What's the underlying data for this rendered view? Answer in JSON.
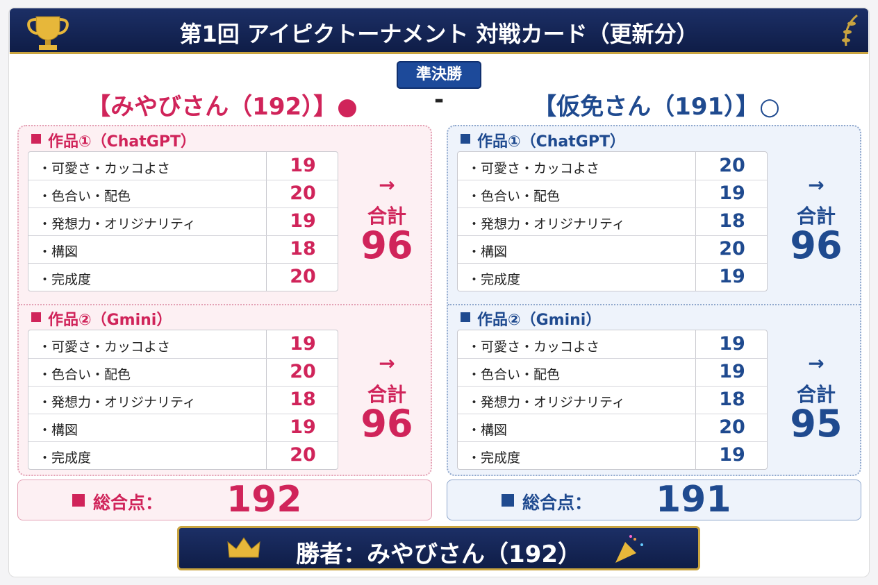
{
  "header": {
    "title": "第1回 アイピクトーナメント 対戦カード（更新分）"
  },
  "round": "準決勝",
  "separator": "-",
  "players": [
    {
      "name": "【みやびさん（192）】",
      "mark": "●",
      "works": [
        {
          "title": "作品①（ChatGPT）",
          "arrow": "→",
          "total_label": "合計",
          "total": 96,
          "rows": [
            {
              "label": "・可愛さ・カッコよさ",
              "score": 19
            },
            {
              "label": "・色合い・配色",
              "score": 20
            },
            {
              "label": "・発想力・オリジナリティ",
              "score": 19
            },
            {
              "label": "・構図",
              "score": 18
            },
            {
              "label": "・完成度",
              "score": 20
            }
          ]
        },
        {
          "title": "作品②（Gmini）",
          "arrow": "→",
          "total_label": "合計",
          "total": 96,
          "rows": [
            {
              "label": "・可愛さ・カッコよさ",
              "score": 19
            },
            {
              "label": "・色合い・配色",
              "score": 20
            },
            {
              "label": "・発想力・オリジナリティ",
              "score": 18
            },
            {
              "label": "・構図",
              "score": 19
            },
            {
              "label": "・完成度",
              "score": 20
            }
          ]
        }
      ],
      "grand_label": "総合点：",
      "grand_total": 192
    },
    {
      "name": "【仮免さん（191）】",
      "mark": "○",
      "works": [
        {
          "title": "作品①（ChatGPT）",
          "arrow": "→",
          "total_label": "合計",
          "total": 96,
          "rows": [
            {
              "label": "・可愛さ・カッコよさ",
              "score": 20
            },
            {
              "label": "・色合い・配色",
              "score": 19
            },
            {
              "label": "・発想力・オリジナリティ",
              "score": 18
            },
            {
              "label": "・構図",
              "score": 20
            },
            {
              "label": "・完成度",
              "score": 19
            }
          ]
        },
        {
          "title": "作品②（Gmini）",
          "arrow": "→",
          "total_label": "合計",
          "total": 95,
          "rows": [
            {
              "label": "・可愛さ・カッコよさ",
              "score": 19
            },
            {
              "label": "・色合い・配色",
              "score": 19
            },
            {
              "label": "・発想力・オリジナリティ",
              "score": 18
            },
            {
              "label": "・構図",
              "score": 20
            },
            {
              "label": "・完成度",
              "score": 19
            }
          ]
        }
      ],
      "grand_label": "総合点：",
      "grand_total": 191
    }
  ],
  "winner": "勝者：みやびさん（192）"
}
